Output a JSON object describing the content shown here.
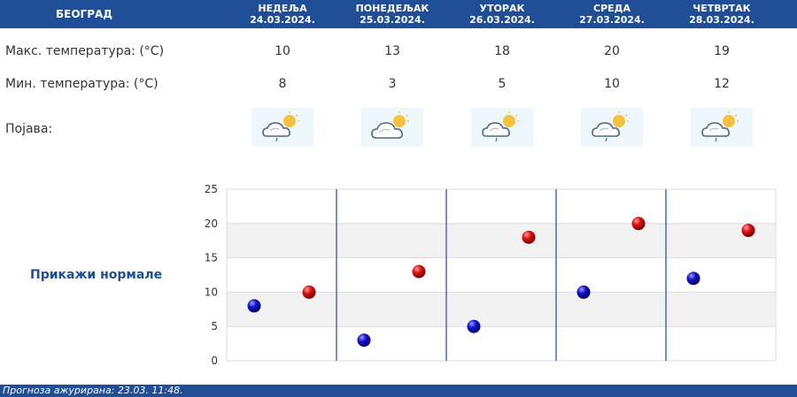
{
  "header": {
    "city": "БЕОГРАД"
  },
  "days": [
    {
      "name": "НЕДЕЉА",
      "date": "24.03.2024.",
      "max": "10",
      "min": "8",
      "weather_icon": "partly-cloudy-sun-icon"
    },
    {
      "name": "ПОНЕДЕЉАК",
      "date": "25.03.2024.",
      "max": "13",
      "min": "3",
      "weather_icon": "partly-cloudy-sun-icon"
    },
    {
      "name": "УТОРАК",
      "date": "26.03.2024.",
      "max": "18",
      "min": "5",
      "weather_icon": "partly-cloudy-sun-light-rain-icon"
    },
    {
      "name": "СРЕДА",
      "date": "27.03.2024.",
      "max": "20",
      "min": "10",
      "weather_icon": "partly-cloudy-sun-light-rain-icon"
    },
    {
      "name": "ЧЕТВРТАК",
      "date": "28.03.2024.",
      "max": "19",
      "min": "12",
      "weather_icon": "partly-cloudy-sun-light-rain-icon"
    }
  ],
  "rows": {
    "max_label": "Макс. температура: (°C)",
    "min_label": "Мин. температура: (°C)",
    "phenomenon_label": "Појава:"
  },
  "show_normals": "Прикажи нормале",
  "footer": {
    "updated": "Прогноза ажурирана:  23.03. 11:48."
  },
  "colors": {
    "header_bg": "#1f4e96",
    "max_marker": "#cc0000",
    "min_marker": "#0000bb",
    "band": "#f2f2f2"
  },
  "chart_data": {
    "type": "scatter",
    "categories": [
      "24.03.2024.",
      "25.03.2024.",
      "26.03.2024.",
      "27.03.2024.",
      "28.03.2024."
    ],
    "series": [
      {
        "values": [
          8,
          3,
          5,
          10,
          12
        ]
      },
      {
        "values": [
          10,
          13,
          18,
          20,
          19
        ]
      }
    ],
    "ylim": [
      0,
      25
    ],
    "yticks": [
      "0",
      "5",
      "10",
      "15",
      "20",
      "25"
    ],
    "grid": true
  }
}
